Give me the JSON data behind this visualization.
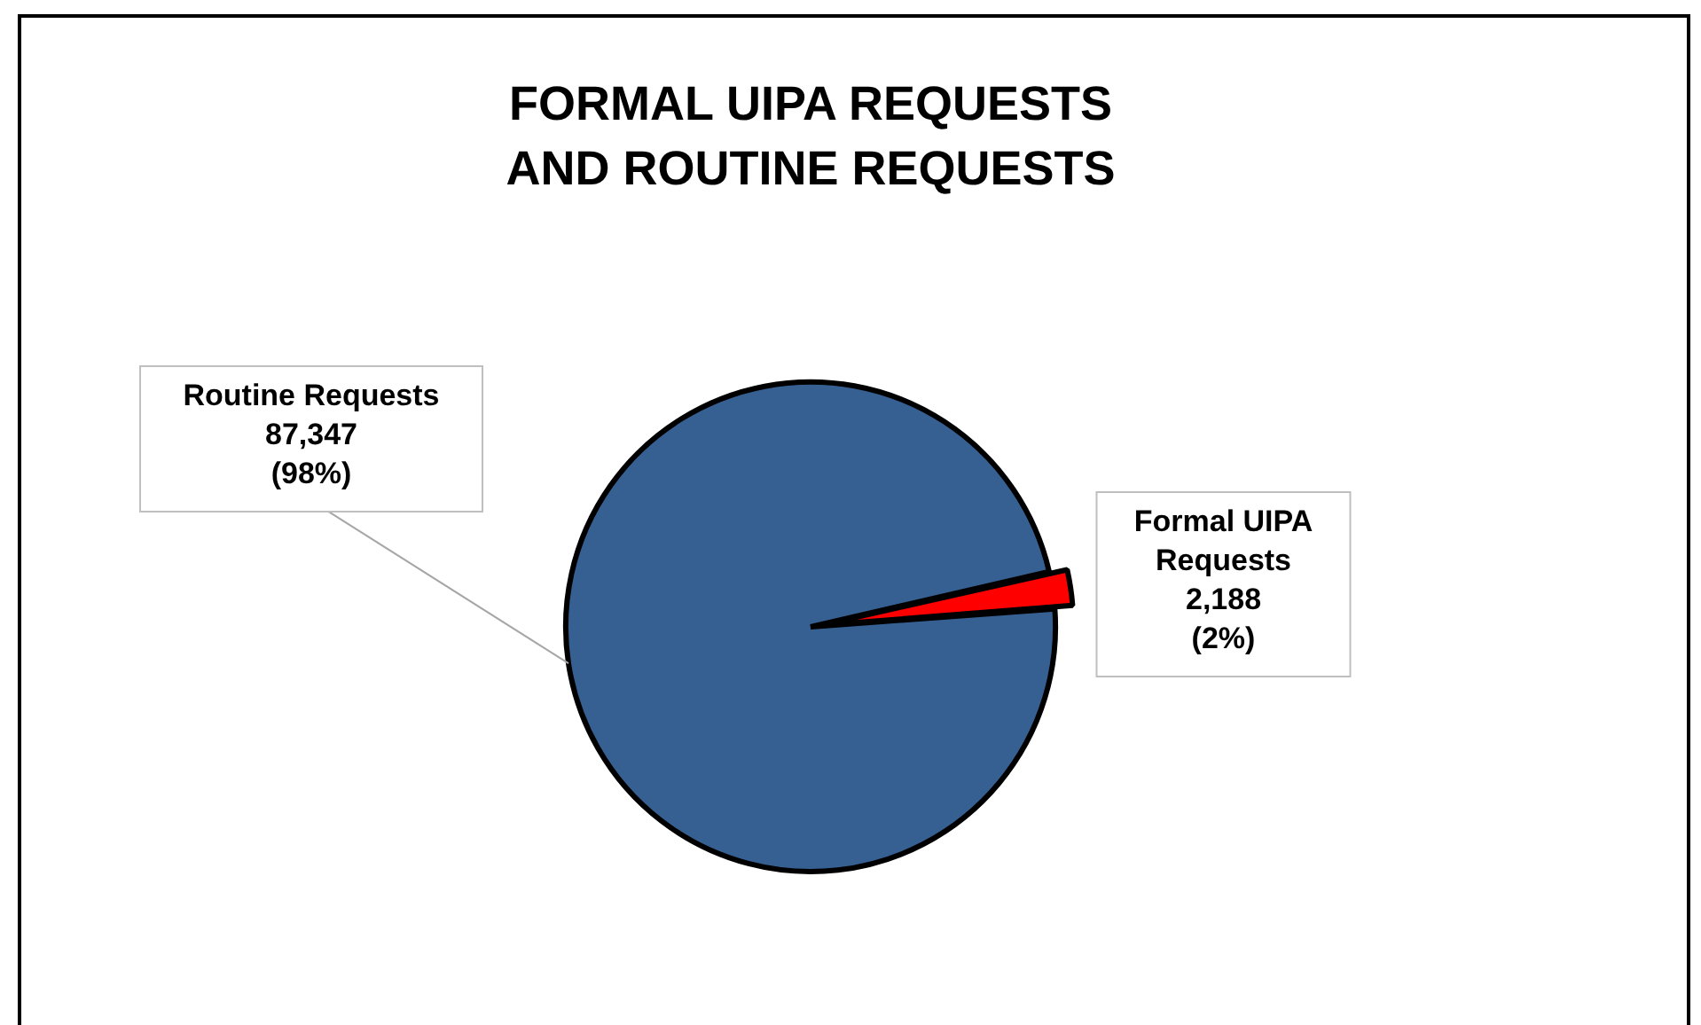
{
  "chart_data": {
    "type": "pie",
    "title": "FORMAL UIPA REQUESTS\nAND ROUTINE REQUESTS",
    "categories": [
      "Formal UIPA Requests",
      "Routine Requests"
    ],
    "values": [
      2188,
      87347
    ],
    "colors": [
      "#ff0000",
      "#376092"
    ],
    "value_labels": [
      "2,188 (2%)",
      "87,347 (98%)"
    ],
    "legend": false
  }
}
